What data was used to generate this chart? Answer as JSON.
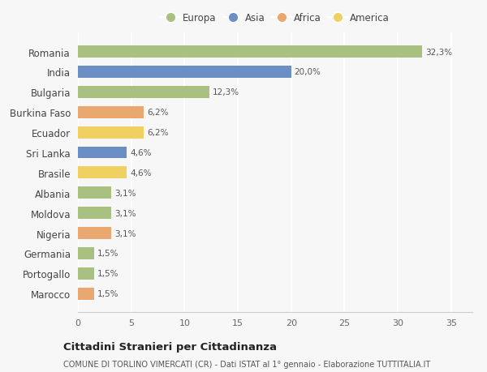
{
  "countries": [
    "Romania",
    "India",
    "Bulgaria",
    "Burkina Faso",
    "Ecuador",
    "Sri Lanka",
    "Brasile",
    "Albania",
    "Moldova",
    "Nigeria",
    "Germania",
    "Portogallo",
    "Marocco"
  ],
  "values": [
    32.3,
    20.0,
    12.3,
    6.2,
    6.2,
    4.6,
    4.6,
    3.1,
    3.1,
    3.1,
    1.5,
    1.5,
    1.5
  ],
  "labels": [
    "32,3%",
    "20,0%",
    "12,3%",
    "6,2%",
    "6,2%",
    "4,6%",
    "4,6%",
    "3,1%",
    "3,1%",
    "3,1%",
    "1,5%",
    "1,5%",
    "1,5%"
  ],
  "continents": [
    "Europa",
    "Asia",
    "Europa",
    "Africa",
    "America",
    "Asia",
    "America",
    "Europa",
    "Europa",
    "Africa",
    "Europa",
    "Europa",
    "Africa"
  ],
  "continent_colors": {
    "Europa": "#a8c080",
    "Asia": "#6b8ec4",
    "Africa": "#e8a870",
    "America": "#f0d060"
  },
  "legend_order": [
    "Europa",
    "Asia",
    "Africa",
    "America"
  ],
  "background_color": "#f7f7f7",
  "title": "Cittadini Stranieri per Cittadinanza",
  "subtitle": "COMUNE DI TORLINO VIMERCATI (CR) - Dati ISTAT al 1° gennaio - Elaborazione TUTTITALIA.IT",
  "xlim": [
    0,
    37
  ],
  "xticks": [
    0,
    5,
    10,
    15,
    20,
    25,
    30,
    35
  ],
  "bar_height": 0.6
}
